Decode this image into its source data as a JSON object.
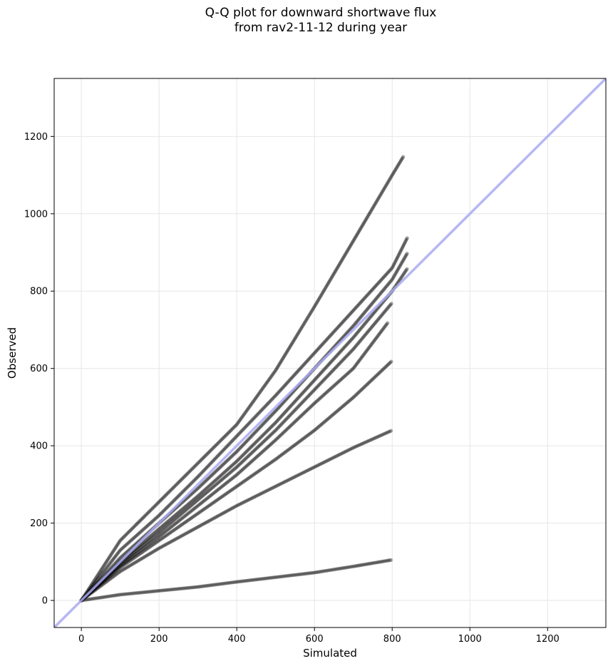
{
  "chart_data": {
    "type": "scatter",
    "title_line1": "Q-Q plot for downward shortwave flux",
    "title_line2": "from rav2-11-12 during year",
    "xlabel": "Simulated",
    "ylabel": "Observed",
    "xlim": [
      -70,
      1350
    ],
    "ylim": [
      -70,
      1350
    ],
    "xticks": [
      0,
      200,
      400,
      600,
      800,
      1000,
      1200
    ],
    "yticks": [
      0,
      200,
      400,
      600,
      800,
      1000,
      1200
    ],
    "grid": true,
    "marker_color": "#000000",
    "reference_line": {
      "color": "#aaaaf2",
      "points": [
        [
          -70,
          -70
        ],
        [
          1350,
          1350
        ]
      ]
    },
    "series": [
      {
        "x": [
          0,
          100,
          200,
          300,
          400,
          500,
          600,
          700,
          800,
          830
        ],
        "y": [
          0,
          155,
          255,
          355,
          455,
          595,
          760,
          930,
          1100,
          1150
        ]
      },
      {
        "x": [
          0,
          100,
          200,
          300,
          400,
          500,
          600,
          700,
          800,
          840
        ],
        "y": [
          0,
          130,
          220,
          320,
          425,
          530,
          640,
          750,
          860,
          940
        ]
      },
      {
        "x": [
          0,
          100,
          200,
          300,
          400,
          500,
          600,
          700,
          800,
          840
        ],
        "y": [
          0,
          110,
          200,
          290,
          385,
          490,
          600,
          710,
          830,
          900
        ]
      },
      {
        "x": [
          0,
          100,
          200,
          300,
          400,
          500,
          600,
          700,
          800,
          840
        ],
        "y": [
          0,
          100,
          185,
          270,
          360,
          460,
          570,
          680,
          800,
          860
        ]
      },
      {
        "x": [
          0,
          100,
          200,
          300,
          400,
          500,
          600,
          700,
          800
        ],
        "y": [
          0,
          95,
          175,
          260,
          345,
          440,
          545,
          650,
          770
        ]
      },
      {
        "x": [
          0,
          100,
          200,
          300,
          400,
          500,
          600,
          700,
          790
        ],
        "y": [
          0,
          90,
          165,
          245,
          325,
          415,
          510,
          600,
          720
        ]
      },
      {
        "x": [
          0,
          100,
          200,
          300,
          400,
          500,
          600,
          700,
          800
        ],
        "y": [
          0,
          85,
          155,
          225,
          295,
          365,
          440,
          525,
          620
        ]
      },
      {
        "x": [
          0,
          100,
          200,
          300,
          400,
          500,
          600,
          700,
          800
        ],
        "y": [
          0,
          75,
          135,
          190,
          245,
          295,
          345,
          395,
          440
        ]
      },
      {
        "x": [
          0,
          100,
          200,
          300,
          400,
          500,
          600,
          700,
          800
        ],
        "y": [
          0,
          15,
          25,
          35,
          48,
          60,
          72,
          88,
          105
        ]
      }
    ]
  }
}
